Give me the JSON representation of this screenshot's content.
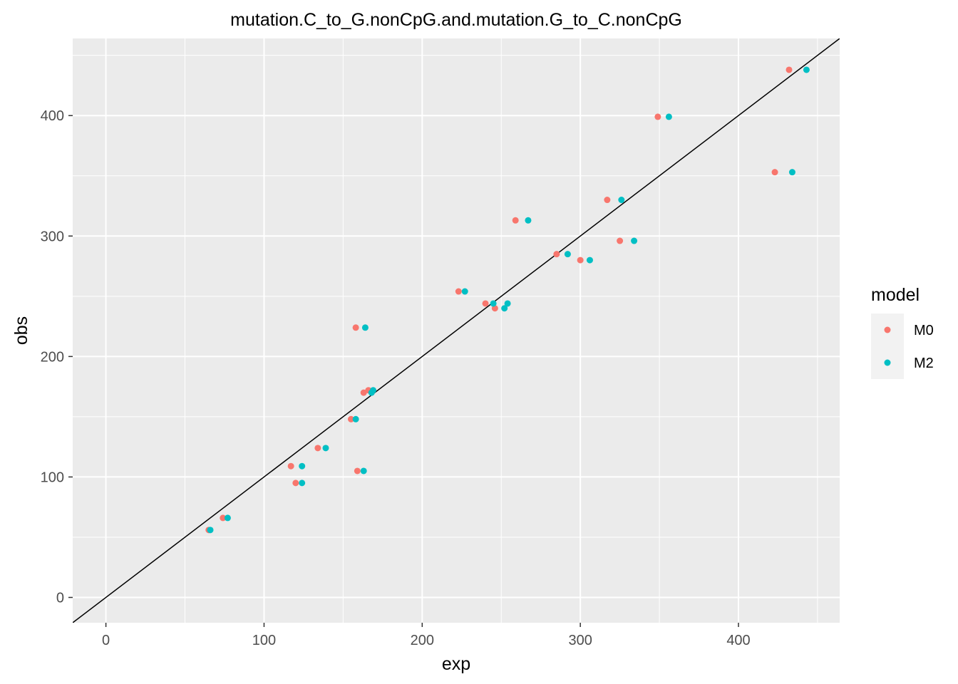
{
  "chart_data": {
    "type": "scatter",
    "title": "mutation.C_to_G.nonCpG.and.mutation.G_to_C.nonCpG",
    "xlabel": "exp",
    "ylabel": "obs",
    "xlim": [
      -21,
      464
    ],
    "ylim": [
      -21,
      464
    ],
    "xticks": [
      0,
      100,
      200,
      300,
      400
    ],
    "yticks": [
      0,
      100,
      200,
      300,
      400
    ],
    "grid": true,
    "reference_line": {
      "type": "identity",
      "color": "#000000"
    },
    "legend": {
      "title": "model",
      "position": "right",
      "entries": [
        "M0",
        "M2"
      ]
    },
    "series": [
      {
        "name": "M0",
        "color": "#F8766D",
        "points": [
          [
            65,
            56
          ],
          [
            74,
            66
          ],
          [
            117,
            109
          ],
          [
            120,
            95
          ],
          [
            134,
            124
          ],
          [
            155,
            148
          ],
          [
            158,
            224
          ],
          [
            159,
            105
          ],
          [
            163,
            170
          ],
          [
            166,
            172
          ],
          [
            223,
            254
          ],
          [
            240,
            244
          ],
          [
            246,
            240
          ],
          [
            259,
            313
          ],
          [
            285,
            285
          ],
          [
            300,
            280
          ],
          [
            317,
            330
          ],
          [
            325,
            296
          ],
          [
            349,
            399
          ],
          [
            423,
            353
          ],
          [
            432,
            438
          ]
        ]
      },
      {
        "name": "M2",
        "color": "#00BFC4",
        "points": [
          [
            66,
            56
          ],
          [
            77,
            66
          ],
          [
            124,
            109
          ],
          [
            124,
            95
          ],
          [
            139,
            124
          ],
          [
            158,
            148
          ],
          [
            164,
            224
          ],
          [
            163,
            105
          ],
          [
            168,
            170
          ],
          [
            169,
            172
          ],
          [
            227,
            254
          ],
          [
            245,
            244
          ],
          [
            252,
            240
          ],
          [
            254,
            244
          ],
          [
            267,
            313
          ],
          [
            292,
            285
          ],
          [
            306,
            280
          ],
          [
            326,
            330
          ],
          [
            334,
            296
          ],
          [
            356,
            399
          ],
          [
            434,
            353
          ],
          [
            443,
            438
          ]
        ]
      }
    ]
  }
}
